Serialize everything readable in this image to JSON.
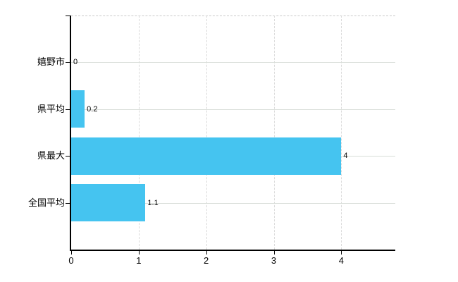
{
  "chart_data": {
    "type": "bar",
    "orientation": "horizontal",
    "title": "",
    "xlabel": "",
    "ylabel": "",
    "categories": [
      "嬉野市",
      "県平均",
      "県最大",
      "全国平均"
    ],
    "values": [
      0,
      0.2,
      4,
      1.1
    ],
    "value_labels": [
      "0",
      "0.2",
      "4",
      "1.1"
    ],
    "x_ticks": [
      0,
      1,
      2,
      3,
      4
    ],
    "x_tick_labels": [
      "0",
      "1",
      "2",
      "3",
      "4"
    ],
    "xlim": [
      0,
      4.8
    ],
    "grid": true,
    "legend": false,
    "colors": {
      "bar": "#45C4F0",
      "axis": "#000000",
      "gridline": "#d9d9d9",
      "background": "#ffffff",
      "label_text": "#000000"
    }
  }
}
